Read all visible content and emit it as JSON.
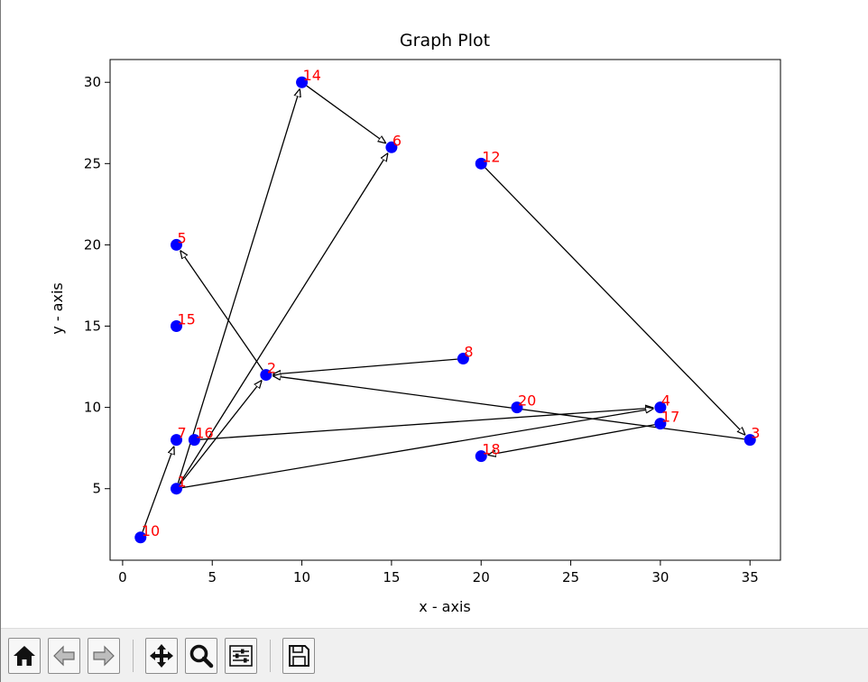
{
  "chart_data": {
    "type": "scatter",
    "title": "Graph Plot",
    "xlabel": "x - axis",
    "ylabel": "y - axis",
    "xlim": [
      -0.7,
      36.7
    ],
    "ylim": [
      0.6,
      31.4
    ],
    "xticks": [
      0,
      5,
      10,
      15,
      20,
      25,
      30,
      35
    ],
    "yticks": [
      5,
      10,
      15,
      20,
      25,
      30
    ],
    "grid": false,
    "point_color": "#0000ff",
    "label_color": "#ff0000",
    "edge_color": "#000000",
    "nodes": [
      {
        "id": "1",
        "x": 3,
        "y": 5
      },
      {
        "id": "2",
        "x": 8,
        "y": 12
      },
      {
        "id": "3",
        "x": 35,
        "y": 8
      },
      {
        "id": "4",
        "x": 30,
        "y": 10
      },
      {
        "id": "5",
        "x": 3,
        "y": 20
      },
      {
        "id": "6",
        "x": 15,
        "y": 26
      },
      {
        "id": "7",
        "x": 3,
        "y": 8
      },
      {
        "id": "8",
        "x": 19,
        "y": 13
      },
      {
        "id": "10",
        "x": 1,
        "y": 2
      },
      {
        "id": "12",
        "x": 20,
        "y": 25
      },
      {
        "id": "14",
        "x": 10,
        "y": 30
      },
      {
        "id": "15",
        "x": 3,
        "y": 15
      },
      {
        "id": "16",
        "x": 4,
        "y": 8
      },
      {
        "id": "17",
        "x": 30,
        "y": 9
      },
      {
        "id": "18",
        "x": 20,
        "y": 7
      },
      {
        "id": "20",
        "x": 22,
        "y": 10
      }
    ],
    "edges": [
      {
        "from": "10",
        "to": "7"
      },
      {
        "from": "1",
        "to": "14"
      },
      {
        "from": "14",
        "to": "6"
      },
      {
        "from": "1",
        "to": "6"
      },
      {
        "from": "1",
        "to": "2"
      },
      {
        "from": "2",
        "to": "5"
      },
      {
        "from": "8",
        "to": "2"
      },
      {
        "from": "3",
        "to": "2"
      },
      {
        "from": "16",
        "to": "4"
      },
      {
        "from": "1",
        "to": "4"
      },
      {
        "from": "12",
        "to": "3"
      },
      {
        "from": "17",
        "to": "18"
      }
    ]
  },
  "toolbar": {
    "buttons": [
      {
        "name": "home-button",
        "icon": "home-icon"
      },
      {
        "name": "back-button",
        "icon": "arrow-left-icon"
      },
      {
        "name": "forward-button",
        "icon": "arrow-right-icon"
      },
      {
        "name": "pan-button",
        "icon": "move-icon"
      },
      {
        "name": "zoom-button",
        "icon": "magnifier-icon"
      },
      {
        "name": "configure-subplots-button",
        "icon": "sliders-icon"
      },
      {
        "name": "save-button",
        "icon": "floppy-icon"
      }
    ]
  }
}
